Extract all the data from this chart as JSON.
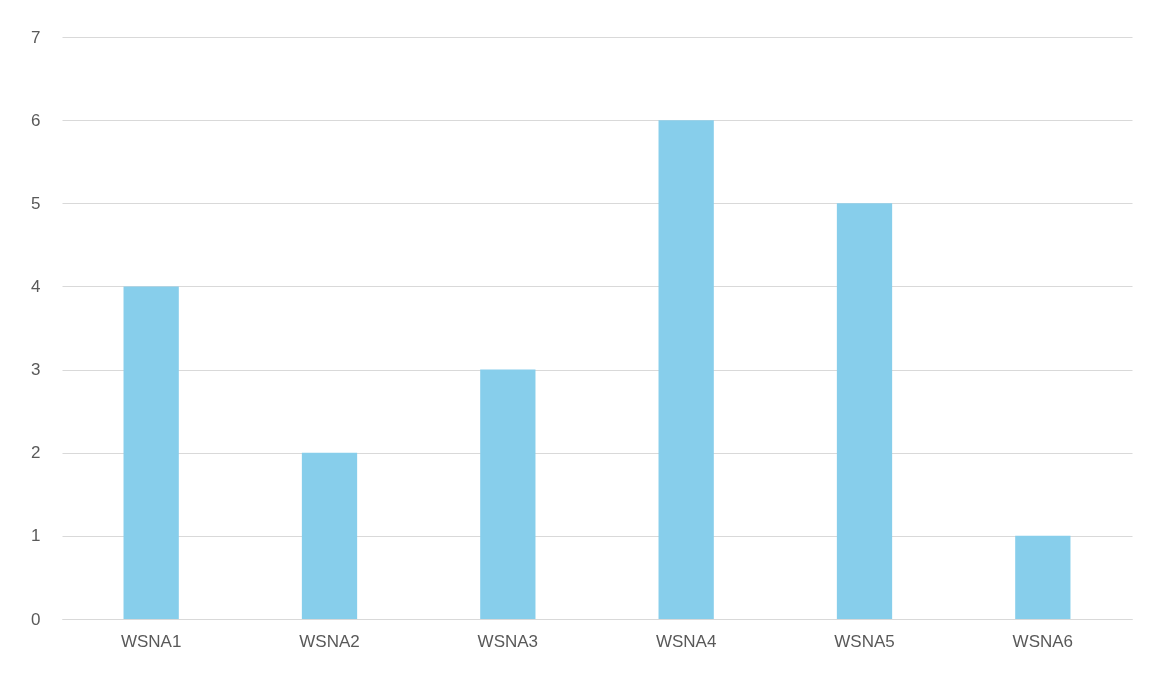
{
  "chart_data": {
    "type": "bar",
    "categories": [
      "WSNA1",
      "WSNA2",
      "WSNA3",
      "WSNA4",
      "WSNA5",
      "WSNA6"
    ],
    "values": [
      4,
      2,
      3,
      6,
      5,
      1
    ],
    "color": "#87ceeb",
    "ylim": [
      0,
      7
    ],
    "yticks": [
      0,
      1,
      2,
      3,
      4,
      5,
      6,
      7
    ],
    "grid": "y"
  }
}
